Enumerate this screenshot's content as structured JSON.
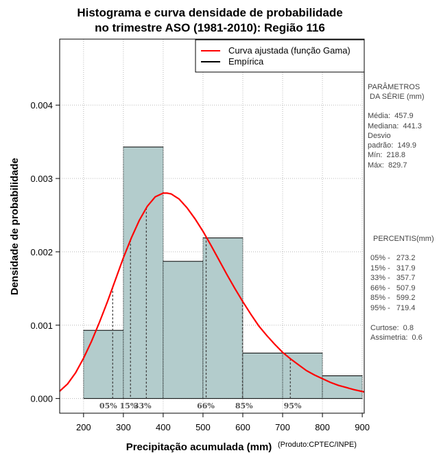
{
  "chart_data": {
    "type": "bar",
    "title_line1": "Histograma e curva densidade de probabilidade",
    "title_line2": "no trimestre ASO (1981-2010): Região 116",
    "xlabel": "Precipitação acumulada (mm)",
    "ylabel": "Densidade de probabilidade",
    "credit": "(Produto:CPTEC/INPE)",
    "xlim": [
      140,
      905
    ],
    "ylim": [
      -0.0002,
      0.0049
    ],
    "x_ticks": [
      200,
      300,
      400,
      500,
      600,
      700,
      800,
      900
    ],
    "y_ticks": [
      0.0,
      0.001,
      0.002,
      0.003,
      0.004
    ],
    "y_tick_labels": [
      "0.000",
      "0.001",
      "0.002",
      "0.003",
      "0.004"
    ],
    "grid": true,
    "bins": [
      {
        "start": 200,
        "end": 300,
        "density": 0.00093
      },
      {
        "start": 300,
        "end": 400,
        "density": 0.00343
      },
      {
        "start": 400,
        "end": 500,
        "density": 0.00187
      },
      {
        "start": 500,
        "end": 600,
        "density": 0.00219
      },
      {
        "start": 600,
        "end": 800,
        "density": 0.00062
      },
      {
        "start": 800,
        "end": 900,
        "density": 0.00031
      }
    ],
    "fitted_curve": {
      "name": "Curva ajustada (função Gama)",
      "color": "#ff0000",
      "x": [
        140,
        160,
        180,
        200,
        220,
        240,
        260,
        280,
        300,
        320,
        340,
        360,
        380,
        400,
        410,
        420,
        440,
        460,
        480,
        500,
        520,
        540,
        560,
        580,
        600,
        620,
        640,
        660,
        680,
        700,
        720,
        740,
        760,
        780,
        800,
        820,
        840,
        860,
        880,
        905
      ],
      "y": [
        0.0001,
        0.0002,
        0.00035,
        0.00055,
        0.00078,
        0.00104,
        0.00132,
        0.00162,
        0.00192,
        0.00219,
        0.00243,
        0.00262,
        0.00275,
        0.0028,
        0.0028,
        0.00279,
        0.00272,
        0.0026,
        0.00245,
        0.00228,
        0.00209,
        0.00189,
        0.00169,
        0.0015,
        0.00132,
        0.00115,
        0.00099,
        0.00086,
        0.00074,
        0.00063,
        0.00054,
        0.00046,
        0.00038,
        0.00032,
        0.00027,
        0.00022,
        0.00018,
        0.00015,
        0.00012,
        9e-05
      ]
    },
    "empirical": {
      "name": "Empírica",
      "color": "#000000"
    },
    "bar_color": "#b3cccc",
    "percentile_markers": [
      {
        "label": "05%",
        "x": 273.2,
        "label_x": 262
      },
      {
        "label": "15%",
        "x": 317.9,
        "label_x": 313
      },
      {
        "label": "33%",
        "x": 357.7,
        "label_x": 348
      },
      {
        "label": "66%",
        "x": 507.9,
        "label_x": 507
      },
      {
        "label": "85%",
        "x": 599.2,
        "label_x": 603
      },
      {
        "label": "95%",
        "x": 719.4,
        "label_x": 725
      }
    ],
    "legend_position": "top-right"
  },
  "side_panel": {
    "params_title1": "PARÂMETROS",
    "params_title2": " DA SÉRIE (mm)",
    "media": "Média:  457.9",
    "mediana": "Mediana:  441.3",
    "desvio1": "Desvio",
    "desvio2": "padrão:  149.9",
    "min": "Mín:  218.8",
    "max": "Máx:  829.7",
    "percentis_title": "PERCENTIS(mm)",
    "p05": "05% -   273.2",
    "p15": "15% -   317.9",
    "p33": "33% -   357.7",
    "p66": "66% -   507.9",
    "p85": "85% -   599.2",
    "p95": "95% -   719.4",
    "curtose": "Curtose:  0.8",
    "assimetria": "Assimetria:  0.6"
  }
}
